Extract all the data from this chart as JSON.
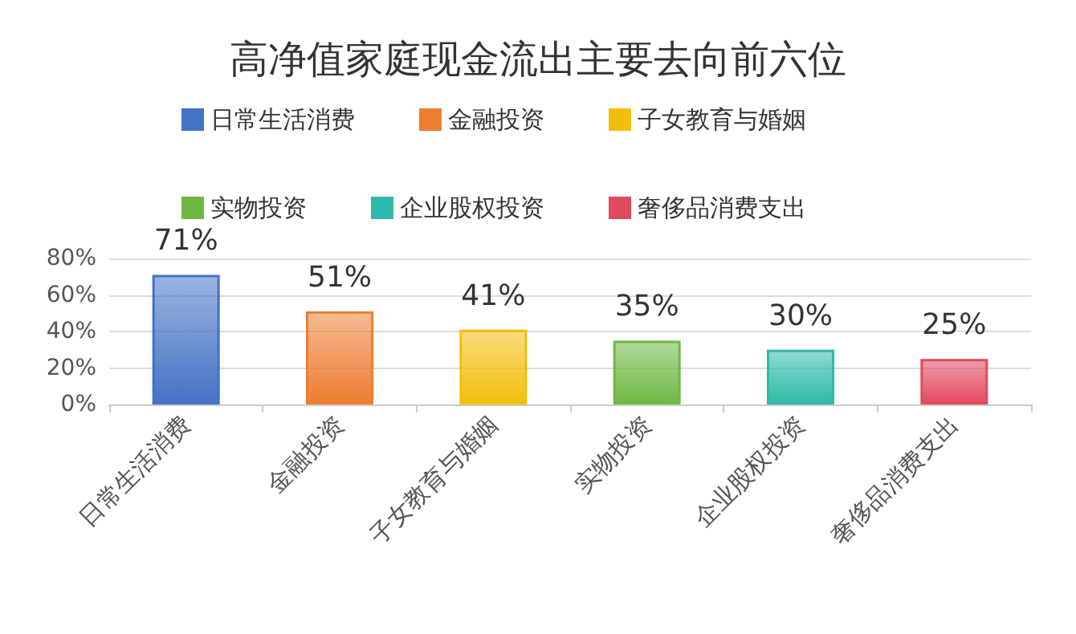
{
  "chart_data": {
    "type": "bar",
    "title": "高净值家庭现金流出主要去向前六位",
    "categories": [
      "日常生活消费",
      "金融投资",
      "子女教育与婚姻",
      "实物投资",
      "企业股权投资",
      "奢侈品消费支出"
    ],
    "series": [
      {
        "name": "日常生活消费",
        "color": "#4472c4",
        "values": [
          71,
          null,
          null,
          null,
          null,
          null
        ],
        "value_labels": [
          "71%",
          null,
          null,
          null,
          null,
          null
        ]
      },
      {
        "name": "金融投资",
        "color": "#ed7d31",
        "values": [
          null,
          51,
          null,
          null,
          null,
          null
        ],
        "value_labels": [
          null,
          "51%",
          null,
          null,
          null,
          null
        ]
      },
      {
        "name": "子女教育与婚姻",
        "color": "#f2be0c",
        "values": [
          null,
          null,
          41,
          null,
          null,
          null
        ],
        "value_labels": [
          null,
          null,
          "41%",
          null,
          null,
          null
        ]
      },
      {
        "name": "实物投资",
        "color": "#70b844",
        "values": [
          null,
          null,
          null,
          35,
          null,
          null
        ],
        "value_labels": [
          null,
          null,
          null,
          "35%",
          null,
          null
        ]
      },
      {
        "name": "企业股权投资",
        "color": "#2ebaa8",
        "values": [
          null,
          null,
          null,
          null,
          30,
          null
        ],
        "value_labels": [
          null,
          null,
          null,
          null,
          "30%",
          null
        ]
      },
      {
        "name": "奢侈品消费支出",
        "color": "#e04a5e",
        "values": [
          null,
          null,
          null,
          null,
          null,
          25
        ],
        "value_labels": [
          null,
          null,
          null,
          null,
          null,
          "25%"
        ]
      }
    ],
    "stacked": true,
    "ylim": [
      0,
      80
    ],
    "yticks": [
      {
        "value": 0,
        "label": "0%"
      },
      {
        "value": 20,
        "label": "20%"
      },
      {
        "value": 40,
        "label": "40%"
      },
      {
        "value": 60,
        "label": "60%"
      },
      {
        "value": 80,
        "label": "80%"
      }
    ],
    "grid": "y",
    "legend": "top"
  }
}
